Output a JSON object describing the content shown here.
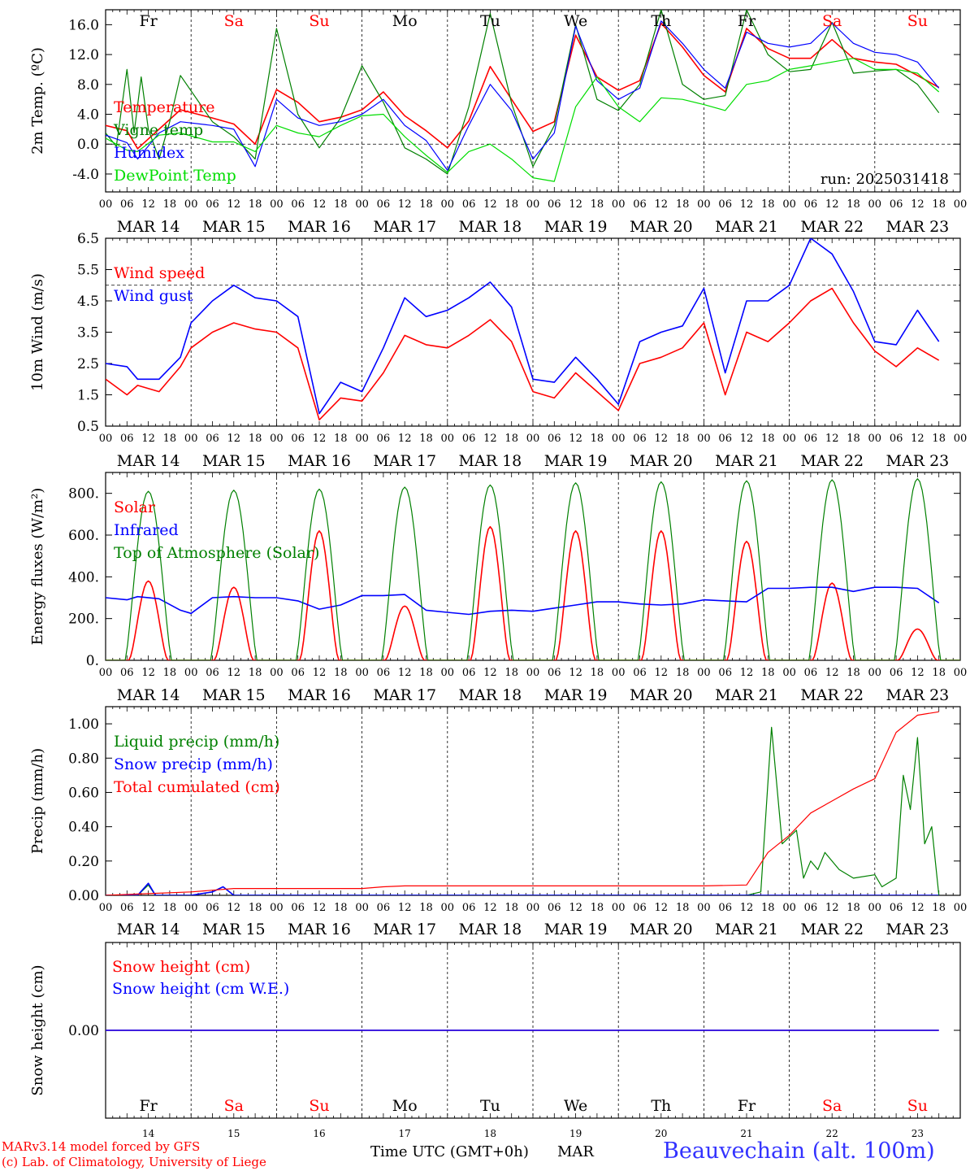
{
  "days": {
    "names": [
      "Fr",
      "Sa",
      "Su",
      "Mo",
      "Tu",
      "We",
      "Th",
      "Fr",
      "Sa",
      "Su"
    ],
    "weekend": [
      false,
      true,
      true,
      false,
      false,
      false,
      false,
      false,
      true,
      true
    ],
    "dates": [
      "MAR 14",
      "MAR 15",
      "MAR 16",
      "MAR 17",
      "MAR 18",
      "MAR 19",
      "MAR 20",
      "MAR 21",
      "MAR 22",
      "MAR 23"
    ],
    "day_numbers": [
      "14",
      "15",
      "16",
      "17",
      "18",
      "19",
      "20",
      "21",
      "22",
      "23"
    ],
    "hour_labels": [
      "00",
      "06",
      "12",
      "18"
    ],
    "final_hour_label": "00"
  },
  "colors": {
    "red": "#ff0000",
    "green": "#008000",
    "blue": "#0000ff",
    "lightgreen": "#00dd00",
    "frame": "#000000"
  },
  "chart_data": [
    {
      "type": "line",
      "ylabel": "2m Temp. (ºC)",
      "ylim": [
        -6.4,
        18.0
      ],
      "yticks": [
        -4.0,
        0.0,
        4.0,
        8.0,
        12.0,
        16.0
      ],
      "ytick_labels": [
        "-4.0",
        "0.0",
        "4.0",
        "8.0",
        "12.0",
        "16.0"
      ],
      "hline": 0.0,
      "annotation": "run: 2025031418",
      "series": [
        {
          "name": "Temperature",
          "color": "#ff0000",
          "x": [
            0,
            6,
            9,
            15,
            21,
            30,
            36,
            42,
            48,
            54,
            60,
            66,
            72,
            78,
            84,
            90,
            96,
            102,
            108,
            114,
            120,
            126,
            132,
            138,
            144,
            150,
            156,
            162,
            168,
            174,
            180,
            186,
            192,
            198,
            204,
            210,
            216,
            222,
            228,
            234
          ],
          "values": [
            2.5,
            1.8,
            -0.6,
            2.0,
            4.6,
            3.5,
            2.7,
            0.0,
            7.3,
            5.6,
            3.0,
            3.6,
            4.6,
            7.0,
            3.8,
            1.8,
            -0.5,
            3.1,
            10.4,
            6.0,
            1.7,
            3.0,
            14.6,
            9.0,
            7.2,
            8.5,
            16.2,
            13.0,
            9.2,
            7.0,
            15.5,
            12.8,
            11.5,
            11.5,
            14.0,
            11.5,
            11.0,
            10.7,
            9.2,
            7.6
          ]
        },
        {
          "name": "Vigne temp",
          "color": "#008000",
          "x": [
            0,
            3,
            6,
            8,
            10,
            12,
            15,
            18,
            21,
            30,
            36,
            42,
            48,
            54,
            60,
            66,
            72,
            78,
            84,
            90,
            96,
            102,
            108,
            114,
            120,
            126,
            132,
            138,
            144,
            150,
            156,
            162,
            168,
            174,
            180,
            186,
            192,
            198,
            204,
            210,
            216,
            222,
            228,
            234
          ],
          "values": [
            1.5,
            -0.3,
            10.0,
            1.5,
            9.0,
            2.0,
            -2.0,
            3.0,
            9.2,
            3.0,
            1.0,
            -2.0,
            15.5,
            4.0,
            -0.5,
            3.5,
            10.5,
            5.6,
            -0.5,
            -2.0,
            -4.0,
            5.0,
            17.5,
            5.5,
            -3.0,
            2.5,
            16.0,
            6.0,
            4.5,
            8.0,
            18.0,
            8.0,
            6.0,
            6.5,
            18.0,
            12.0,
            9.7,
            10.0,
            16.3,
            9.5,
            9.8,
            10.0,
            8.0,
            4.2
          ]
        },
        {
          "name": "Humidex",
          "color": "#0000ff",
          "x": [
            0,
            6,
            9,
            15,
            21,
            30,
            36,
            42,
            48,
            54,
            60,
            66,
            72,
            78,
            84,
            90,
            96,
            102,
            108,
            114,
            120,
            126,
            132,
            138,
            144,
            150,
            156,
            162,
            168,
            174,
            180,
            186,
            192,
            198,
            204,
            210,
            216,
            222,
            228,
            234
          ],
          "values": [
            1.2,
            0.2,
            -2.0,
            1.5,
            3.0,
            2.5,
            2.0,
            -3.0,
            6.0,
            3.5,
            2.5,
            3.0,
            4.0,
            6.0,
            2.5,
            0.5,
            -3.5,
            2.5,
            8.0,
            4.5,
            -2.0,
            1.5,
            15.8,
            8.5,
            6.0,
            7.5,
            16.5,
            13.5,
            10.0,
            7.5,
            15.0,
            13.5,
            13.0,
            13.5,
            16.2,
            13.5,
            12.3,
            12.0,
            11.0,
            7.5
          ]
        },
        {
          "name": "DewPoint Temp",
          "color": "#00dd00",
          "x": [
            0,
            6,
            9,
            15,
            21,
            30,
            36,
            42,
            48,
            54,
            60,
            66,
            72,
            78,
            84,
            90,
            96,
            102,
            108,
            114,
            120,
            126,
            132,
            138,
            144,
            150,
            156,
            162,
            168,
            174,
            180,
            186,
            192,
            198,
            204,
            210,
            216,
            222,
            228,
            234
          ],
          "values": [
            0.8,
            -0.8,
            -1.0,
            1.2,
            1.5,
            0.3,
            0.3,
            -1.0,
            2.5,
            1.5,
            1.0,
            2.5,
            3.8,
            4.0,
            1.0,
            -1.5,
            -3.8,
            -1.0,
            0.0,
            -2.0,
            -4.5,
            -5.0,
            5.0,
            9.0,
            5.0,
            3.0,
            6.2,
            6.0,
            5.3,
            4.5,
            8.0,
            8.5,
            10.0,
            10.5,
            11.0,
            11.5,
            10.0,
            10.0,
            9.5,
            7.0
          ]
        }
      ]
    },
    {
      "type": "line",
      "ylabel": "10m Wind (m/s)",
      "ylim": [
        0.5,
        6.5
      ],
      "yticks": [
        0.5,
        1.5,
        2.5,
        3.5,
        4.5,
        5.5,
        6.5
      ],
      "ytick_labels": [
        "0.5",
        "1.5",
        "2.5",
        "3.5",
        "4.5",
        "5.5",
        "6.5"
      ],
      "hline": 5.0,
      "series": [
        {
          "name": "Wind speed",
          "color": "#ff0000",
          "x": [
            0,
            6,
            9,
            15,
            21,
            24,
            30,
            36,
            42,
            48,
            54,
            60,
            66,
            72,
            78,
            84,
            90,
            96,
            102,
            108,
            114,
            120,
            126,
            132,
            138,
            144,
            150,
            156,
            162,
            168,
            174,
            180,
            186,
            192,
            198,
            204,
            210,
            216,
            222,
            228,
            234
          ],
          "values": [
            2.0,
            1.5,
            1.8,
            1.6,
            2.4,
            3.0,
            3.5,
            3.8,
            3.6,
            3.5,
            3.0,
            0.7,
            1.4,
            1.3,
            2.2,
            3.4,
            3.1,
            3.0,
            3.4,
            3.9,
            3.2,
            1.6,
            1.4,
            2.2,
            1.6,
            1.0,
            2.5,
            2.7,
            3.0,
            3.8,
            1.5,
            3.5,
            3.2,
            3.8,
            4.5,
            4.9,
            3.8,
            2.9,
            2.4,
            3.0,
            2.6
          ]
        },
        {
          "name": "Wind gust",
          "color": "#0000ff",
          "x": [
            0,
            6,
            9,
            15,
            21,
            24,
            30,
            36,
            42,
            48,
            54,
            60,
            66,
            72,
            78,
            84,
            90,
            96,
            102,
            108,
            114,
            120,
            126,
            132,
            138,
            144,
            150,
            156,
            162,
            168,
            174,
            180,
            186,
            192,
            198,
            204,
            210,
            216,
            222,
            228,
            234
          ],
          "values": [
            2.5,
            2.4,
            2.0,
            2.0,
            2.7,
            3.8,
            4.5,
            5.0,
            4.6,
            4.5,
            4.0,
            0.9,
            1.9,
            1.6,
            3.0,
            4.6,
            4.0,
            4.2,
            4.6,
            5.1,
            4.3,
            2.0,
            1.9,
            2.7,
            2.0,
            1.2,
            3.2,
            3.5,
            3.7,
            4.9,
            2.2,
            4.5,
            4.5,
            5.0,
            6.5,
            6.0,
            4.8,
            3.2,
            3.1,
            4.2,
            3.2
          ]
        }
      ]
    },
    {
      "type": "line",
      "ylabel": "Energy fluxes (W/m²)",
      "ylim": [
        0,
        900
      ],
      "yticks": [
        0,
        200,
        400,
        600,
        800
      ],
      "ytick_labels": [
        "0.",
        "200.",
        "400.",
        "600.",
        "800."
      ],
      "series": [
        {
          "name": "Solar",
          "color": "#ff0000",
          "peaks": [
            380,
            350,
            620,
            260,
            640,
            620,
            620,
            570,
            370,
            150
          ]
        },
        {
          "name": "Infrared",
          "color": "#0000ff",
          "x": [
            0,
            6,
            9,
            15,
            21,
            24,
            30,
            36,
            42,
            48,
            54,
            60,
            66,
            72,
            78,
            84,
            90,
            96,
            102,
            108,
            114,
            120,
            126,
            132,
            138,
            144,
            150,
            156,
            162,
            168,
            174,
            180,
            186,
            192,
            198,
            204,
            210,
            216,
            222,
            228,
            234
          ],
          "values": [
            300,
            290,
            305,
            295,
            240,
            225,
            300,
            305,
            300,
            300,
            285,
            245,
            265,
            310,
            310,
            315,
            240,
            230,
            220,
            235,
            240,
            235,
            250,
            265,
            280,
            280,
            270,
            265,
            270,
            290,
            285,
            280,
            345,
            345,
            350,
            350,
            330,
            350,
            350,
            345,
            275
          ]
        },
        {
          "name": "Top of Atmosphere (Solar)",
          "color": "#008000",
          "peaks": [
            810,
            815,
            820,
            830,
            840,
            850,
            855,
            860,
            865,
            870
          ]
        }
      ]
    },
    {
      "type": "line",
      "ylabel": "Precip (mm/h)",
      "ylim": [
        0.0,
        1.1
      ],
      "yticks": [
        0.0,
        0.2,
        0.4,
        0.6,
        0.8,
        1.0
      ],
      "ytick_labels": [
        "0.00",
        "0.20",
        "0.40",
        "0.60",
        "0.80",
        "1.00"
      ],
      "series": [
        {
          "name": "Liquid precip (mm/h)",
          "color": "#008000",
          "x": [
            0,
            9,
            12,
            14,
            24,
            30,
            33,
            36,
            45,
            48,
            180,
            184,
            187,
            190,
            194,
            196,
            198,
            200,
            202,
            206,
            210,
            216,
            218,
            222,
            224,
            226,
            228,
            230,
            232,
            234
          ],
          "values": [
            0,
            0,
            0.06,
            0,
            0,
            0.02,
            0.05,
            0,
            0,
            0,
            0,
            0.02,
            0.98,
            0.3,
            0.38,
            0.1,
            0.2,
            0.15,
            0.25,
            0.15,
            0.1,
            0.12,
            0.05,
            0.1,
            0.7,
            0.5,
            0.92,
            0.3,
            0.4,
            0
          ]
        },
        {
          "name": "Snow precip (mm/h)",
          "color": "#0000ff",
          "x": [
            0,
            9,
            12,
            14,
            24,
            30,
            33,
            36,
            45,
            48,
            234
          ],
          "values": [
            0,
            0,
            0.07,
            0,
            0,
            0.02,
            0.05,
            0,
            0,
            0,
            0
          ]
        },
        {
          "name": "Total cumulated (cm)",
          "color": "#ff0000",
          "x": [
            0,
            12,
            24,
            36,
            60,
            72,
            78,
            84,
            96,
            132,
            168,
            180,
            186,
            192,
            198,
            204,
            210,
            216,
            222,
            228,
            234
          ],
          "values": [
            0,
            0.01,
            0.02,
            0.04,
            0.04,
            0.04,
            0.05,
            0.055,
            0.055,
            0.055,
            0.055,
            0.06,
            0.25,
            0.35,
            0.48,
            0.55,
            0.62,
            0.68,
            0.95,
            1.05,
            1.07
          ]
        }
      ]
    },
    {
      "type": "line",
      "ylabel": "Snow height (cm)",
      "ylim": [
        -1,
        1
      ],
      "yticks": [
        0.0
      ],
      "ytick_labels": [
        "0.00"
      ],
      "series": [
        {
          "name": "Snow height (cm)",
          "color": "#ff0000",
          "x": [
            0,
            234
          ],
          "values": [
            0,
            0
          ]
        },
        {
          "name": "Snow height (cm W.E.)",
          "color": "#0000ff",
          "x": [
            0,
            234
          ],
          "values": [
            0,
            0
          ]
        }
      ]
    }
  ],
  "footer": {
    "model_line": "MARv3.14 model forced by GFS",
    "copyright_line": "(c) Lab. of Climatology, University of Liege",
    "time_label": "Time UTC (GMT+0h)",
    "month": "MAR",
    "station": "Beauvechain (alt. 100m)"
  }
}
